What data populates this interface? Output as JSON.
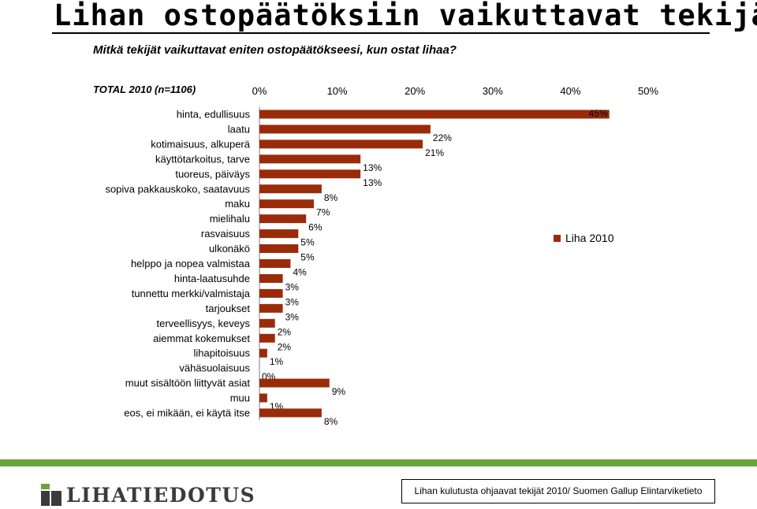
{
  "title": "Lihan ostopäätöksiin vaikuttavat tekijät",
  "subtitle": "Mitkä tekijät vaikuttavat eniten ostopäätökseesi, kun ostat lihaa?",
  "total_label": "TOTAL 2010 (n=1106)",
  "chart_data": {
    "type": "bar",
    "orientation": "horizontal",
    "categories": [
      "hinta, edullisuus",
      "laatu",
      "kotimaisuus, alkuperä",
      "käyttötarkoitus, tarve",
      "tuoreus, päiväys",
      "sopiva pakkauskoko, saatavuus",
      "maku",
      "mielihalu",
      "rasvaisuus",
      "ulkonäkö",
      "helppo ja nopea valmistaa",
      "hinta-laatusuhde",
      "tunnettu merkki/valmistaja",
      "tarjoukset",
      "terveellisyys, keveys",
      "aiemmat kokemukset",
      "lihapitoisuus",
      "vähäsuolaisuus",
      "muut sisältöön liittyvät asiat",
      "muu",
      "eos, ei mikään, ei käytä itse"
    ],
    "series": [
      {
        "name": "Liha 2010",
        "values": [
          45,
          22,
          21,
          13,
          13,
          8,
          7,
          6,
          5,
          5,
          4,
          3,
          3,
          3,
          2,
          2,
          1,
          0,
          9,
          1,
          8
        ],
        "labels": [
          "45%",
          "22%",
          "21%",
          "13%",
          "13%",
          "8%",
          "7%",
          "6%",
          "5%",
          "5%",
          "4%",
          "3%",
          "3%",
          "3%",
          "2%",
          "2%",
          "1%",
          "0%",
          "9%",
          "1%",
          "8%"
        ]
      }
    ],
    "xlim": [
      0,
      50
    ],
    "xticks": [
      "0%",
      "10%",
      "20%",
      "30%",
      "40%",
      "50%"
    ],
    "xaxis_position": "top",
    "grid": false,
    "legend_position": "right"
  },
  "legend": {
    "label": "Liha 2010"
  },
  "colors": {
    "bar": "#9a2b0a",
    "accent_green": "#6aa53c",
    "logo_gray": "#3b3b3b"
  },
  "footer": {
    "logo_text": "LIHATIEDOTUS",
    "source": "Lihan kulutusta ohjaavat tekijät 2010/ Suomen Gallup Elintarviketieto"
  }
}
